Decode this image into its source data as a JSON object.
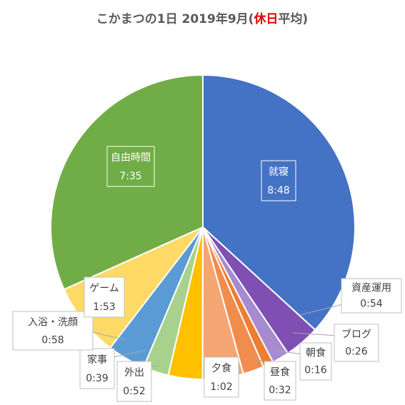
{
  "chart_data": {
    "type": "pie",
    "title": {
      "prefix": "こかまつの1日 2019年9月(",
      "highlight": "休日",
      "suffix": "平均)",
      "highlight_color": "#e00000"
    },
    "slices": [
      {
        "label": "就寝",
        "value": "8:48",
        "minutes": 528,
        "color": "#4472c4"
      },
      {
        "label": "資産運用",
        "value": "0:54",
        "minutes": 54,
        "color": "#7f4fb3"
      },
      {
        "label": "ブログ",
        "value": "0:26",
        "minutes": 26,
        "color": "#a68bd0"
      },
      {
        "label": "朝食",
        "value": "0:16",
        "minutes": 16,
        "color": "#ed7d31"
      },
      {
        "label": "昼食",
        "value": "0:32",
        "minutes": 32,
        "color": "#f08c4c"
      },
      {
        "label": "夕食",
        "value": "1:02",
        "minutes": 62,
        "color": "#f4a672"
      },
      {
        "label": "外出",
        "value": "0:52",
        "minutes": 52,
        "color": "#ffc000"
      },
      {
        "label": "家事",
        "value": "0:39",
        "minutes": 39,
        "color": "#a9d18e"
      },
      {
        "label": "入浴・洗顔",
        "value": "0:58",
        "minutes": 58,
        "color": "#5b9bd5"
      },
      {
        "label": "ゲーム",
        "value": "1:53",
        "minutes": 113,
        "color": "#ffd966"
      },
      {
        "label": "自由時間",
        "value": "7:35",
        "minutes": 455,
        "color": "#70ad47"
      }
    ]
  }
}
